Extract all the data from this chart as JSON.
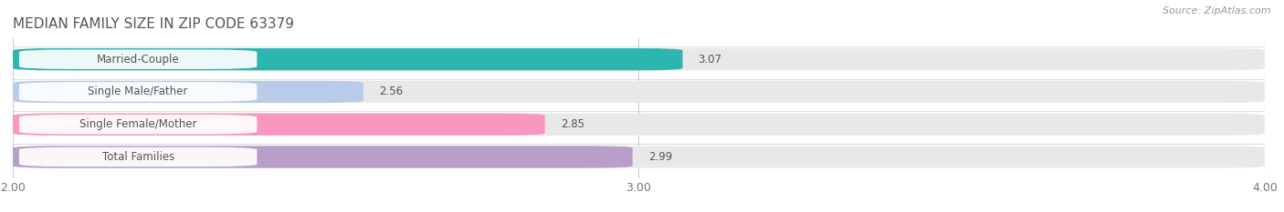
{
  "title": "MEDIAN FAMILY SIZE IN ZIP CODE 63379",
  "source": "Source: ZipAtlas.com",
  "categories": [
    "Married-Couple",
    "Single Male/Father",
    "Single Female/Mother",
    "Total Families"
  ],
  "values": [
    3.07,
    2.56,
    2.85,
    2.99
  ],
  "bar_colors": [
    "#2db5b0",
    "#b8ccea",
    "#f898be",
    "#b89ecb"
  ],
  "xlim": [
    2.0,
    4.0
  ],
  "xticks": [
    2.0,
    3.0,
    4.0
  ],
  "bar_height": 0.68,
  "background_color": "#ffffff",
  "bar_bg_color": "#e8e8e8",
  "label_color": "#555555",
  "value_color": "#555555",
  "title_color": "#555555",
  "source_color": "#999999",
  "grid_color": "#ffffff",
  "label_box_color": "#f5f5f5"
}
